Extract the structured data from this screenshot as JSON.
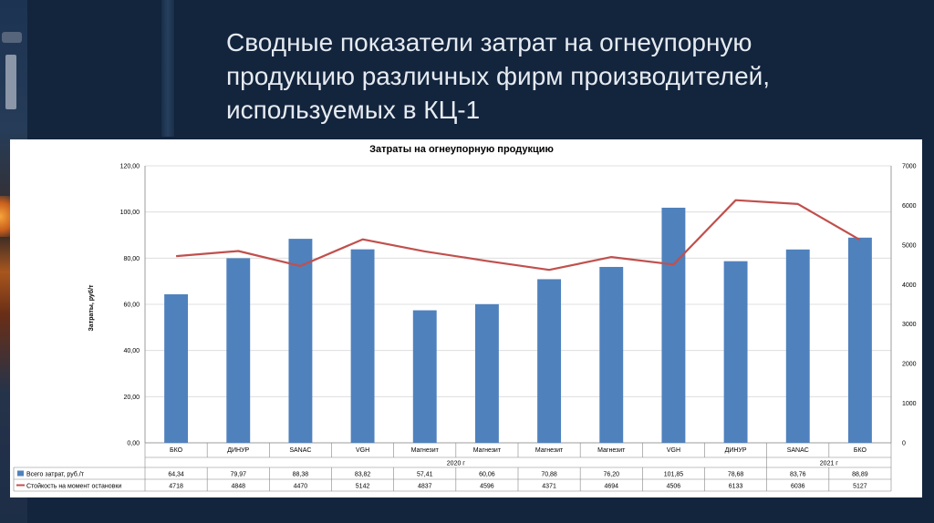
{
  "slide": {
    "title": "Сводные показатели затрат на огнеупорную продукцию различных фирм производителей, используемых в КЦ-1"
  },
  "chart_data": {
    "type": "bar",
    "title": "Затраты на огнеупорную продукцию",
    "ylabel": "Затраты, руб/т",
    "ylim": [
      0,
      120
    ],
    "y_ticks": [
      "0,00",
      "20,00",
      "40,00",
      "60,00",
      "80,00",
      "100,00",
      "120,00"
    ],
    "y2lim": [
      0,
      7000
    ],
    "y2_ticks": [
      "0",
      "1000",
      "2000",
      "3000",
      "4000",
      "5000",
      "6000",
      "7000"
    ],
    "categories": [
      "БКО",
      "ДИНУР",
      "SANAC",
      "VGH",
      "Магнезит",
      "Магнезит",
      "Магнезит",
      "Магнезит",
      "VGH",
      "ДИНУР",
      "SANAC",
      "БКО"
    ],
    "groups": [
      {
        "label": "2020 г",
        "from": 0,
        "to": 9
      },
      {
        "label": "2021 г",
        "from": 10,
        "to": 11
      }
    ],
    "series": [
      {
        "name": "Всего затрат, руб./т",
        "type": "bar",
        "axis": "left",
        "color": "#4f81bd",
        "values": [
          64.34,
          79.97,
          88.38,
          83.82,
          57.41,
          60.06,
          70.88,
          76.2,
          101.85,
          78.68,
          83.76,
          88.89
        ],
        "labels": [
          "64,34",
          "79,97",
          "88,38",
          "83,82",
          "57,41",
          "60,06",
          "70,88",
          "76,20",
          "101,85",
          "78,68",
          "83,76",
          "88,89"
        ]
      },
      {
        "name": "Стойкость на момент остановки",
        "type": "line",
        "axis": "right",
        "color": "#c0504d",
        "values": [
          4718,
          4848,
          4470,
          5142,
          4837,
          4596,
          4371,
          4694,
          4506,
          6133,
          6036,
          5127
        ],
        "labels": [
          "4718",
          "4848",
          "4470",
          "5142",
          "4837",
          "4596",
          "4371",
          "4694",
          "4506",
          "6133",
          "6036",
          "5127"
        ]
      }
    ],
    "grid": true,
    "legend_position": "data-table"
  }
}
